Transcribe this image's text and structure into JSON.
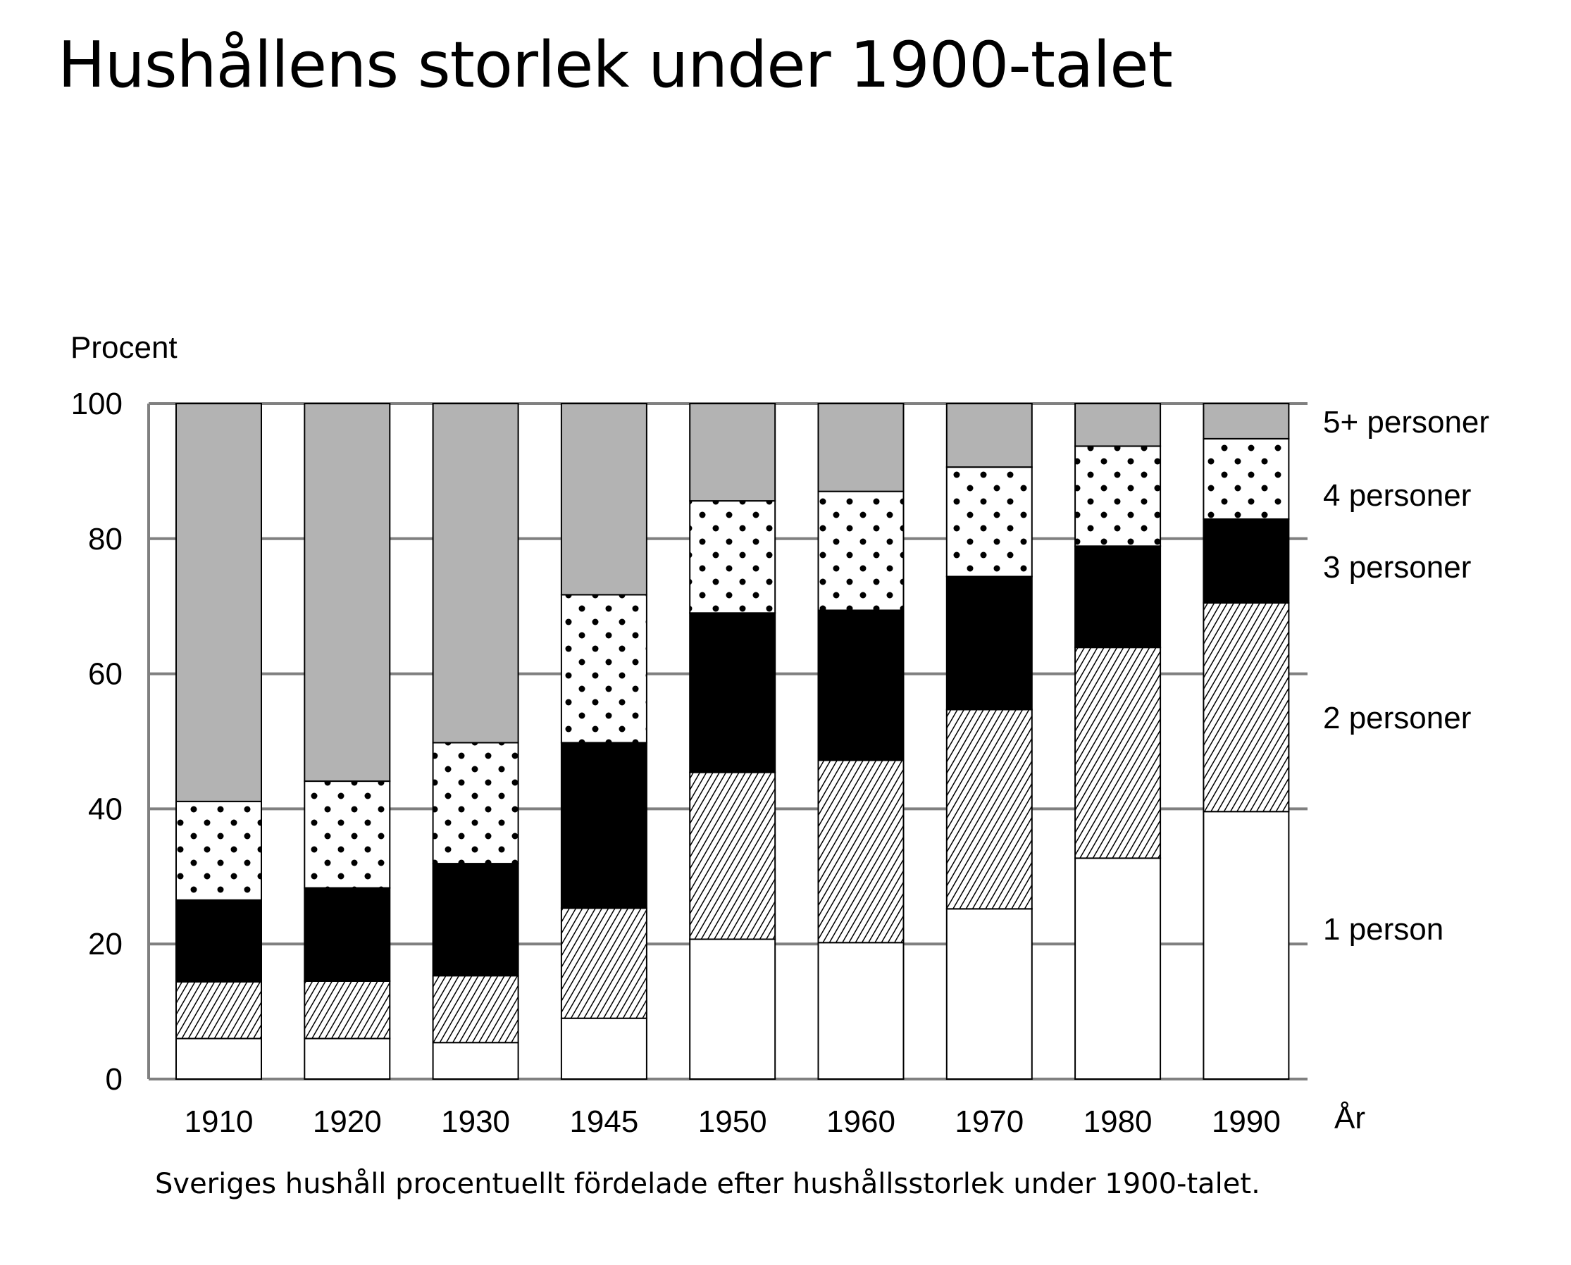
{
  "title": "Hushållens storlek under 1900-talet",
  "caption": "Sveriges hushåll procentuellt fördelade efter hushållsstorlek under 1900-talet.",
  "chart_data": {
    "type": "bar",
    "stacked": true,
    "ylabel": "Procent",
    "xlabel": "År",
    "ylim": [
      0,
      100
    ],
    "yticks": [
      0,
      20,
      40,
      60,
      80,
      100
    ],
    "grid": true,
    "legend": "right (labels beside last bar)",
    "categories": [
      "1910",
      "1920",
      "1930",
      "1945",
      "1950",
      "1960",
      "1970",
      "1980",
      "1990"
    ],
    "series": [
      {
        "name": "1 person",
        "fill": "white",
        "values": [
          6.0,
          6.0,
          5.4,
          9.0,
          20.7,
          20.2,
          25.2,
          32.7,
          39.6
        ]
      },
      {
        "name": "2 personer",
        "fill": "hatched",
        "values": [
          8.4,
          8.5,
          9.9,
          16.3,
          24.7,
          27.0,
          29.5,
          31.2,
          30.9
        ]
      },
      {
        "name": "3 personer",
        "fill": "black",
        "values": [
          12.1,
          13.8,
          16.6,
          24.5,
          23.6,
          22.2,
          19.7,
          15.0,
          12.4
        ]
      },
      {
        "name": "4 personer",
        "fill": "dotted",
        "values": [
          14.6,
          15.8,
          17.9,
          21.9,
          16.6,
          17.6,
          16.2,
          14.8,
          11.9
        ]
      },
      {
        "name": "5+ personer",
        "fill": "#b3b3b3",
        "values": [
          58.9,
          55.9,
          50.2,
          28.3,
          14.4,
          13.0,
          9.4,
          6.3,
          5.2
        ]
      }
    ]
  }
}
